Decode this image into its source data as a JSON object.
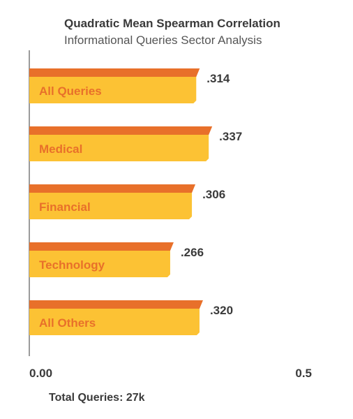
{
  "chart_data": {
    "type": "bar",
    "orientation": "horizontal",
    "title": "Quadratic Mean Spearman Correlation",
    "subtitle": "Informational Queries Sector Analysis",
    "categories": [
      "All Queries",
      "Medical",
      "Financial",
      "Technology",
      "All Others"
    ],
    "values": [
      0.314,
      0.337,
      0.306,
      0.266,
      0.32
    ],
    "value_labels": [
      ".314",
      ".337",
      ".306",
      ".266",
      ".320"
    ],
    "xlim": [
      0,
      0.5
    ],
    "tick_labels": [
      "0.00",
      "0.5"
    ],
    "grid": false,
    "footnote": "Total Queries: 27k",
    "colors": {
      "bar_front": "#FCC234",
      "bar_top": "#E8702A",
      "category_text": "#E8702A",
      "value_text": "#3a3a3a",
      "axis": "#7a7a7a"
    }
  }
}
